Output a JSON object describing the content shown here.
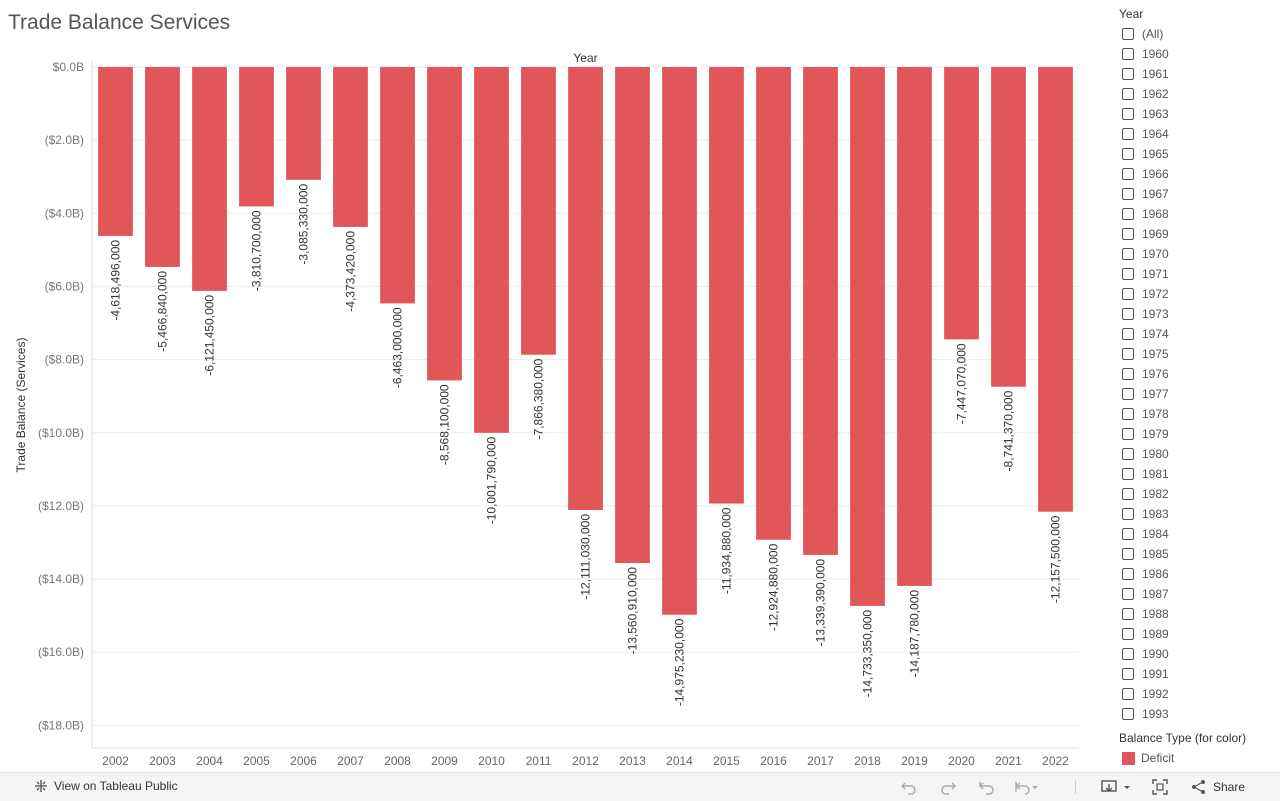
{
  "title": "Trade Balance Services",
  "colors": {
    "deficit": "#E15759",
    "grid": "#ececec",
    "axis_text": "#777777"
  },
  "chart_data": {
    "type": "bar",
    "title": "Trade Balance Services",
    "top_label": "Year",
    "xlabel": "Year",
    "ylabel": "Trade Balance (Services)",
    "ylim": [
      -18400000000,
      0
    ],
    "yticks": [
      0,
      -2000000000,
      -4000000000,
      -6000000000,
      -8000000000,
      -10000000000,
      -12000000000,
      -14000000000,
      -16000000000,
      -18000000000
    ],
    "ytick_labels": [
      "$0.0B",
      "($2.0B)",
      "($4.0B)",
      "($6.0B)",
      "($8.0B)",
      "($10.0B)",
      "($12.0B)",
      "($14.0B)",
      "($16.0B)",
      "($18.0B)"
    ],
    "categories": [
      "2002",
      "2003",
      "2004",
      "2005",
      "2006",
      "2007",
      "2008",
      "2009",
      "2010",
      "2011",
      "2012",
      "2013",
      "2014",
      "2015",
      "2016",
      "2017",
      "2018",
      "2019",
      "2020",
      "2021",
      "2022"
    ],
    "values": [
      -4618496000,
      -5466840000,
      -6121450000,
      -3810700000,
      -3085330000,
      -4373420000,
      -6463000000,
      -8568100000,
      -10001790000,
      -7866380000,
      -12111030000,
      -13560910000,
      -14975230000,
      -11934880000,
      -12924880000,
      -13339390000,
      -14733350000,
      -14187780000,
      -7447070000,
      -8741370000,
      -12157500000
    ],
    "data_labels": [
      "-4,618,496,000",
      "-5,466,840,000",
      "-6,121,450,000",
      "-3,810,700,000",
      "-3,085,330,000",
      "-4,373,420,000",
      "-6,463,000,000",
      "-8,568,100,000",
      "-10,001,790,000",
      "-7,866,380,000",
      "-12,111,030,000",
      "-13,560,910,000",
      "-14,975,230,000",
      "-11,934,880,000",
      "-12,924,880,000",
      "-13,339,390,000",
      "-14,733,350,000",
      "-14,187,780,000",
      "-7,447,070,000",
      "-8,741,370,000",
      "-12,157,500,000"
    ],
    "legend": {
      "title": "Balance Type (for color)",
      "entries": [
        "Deficit"
      ],
      "placement": "bottom-right"
    }
  },
  "filter": {
    "title": "Year",
    "items": [
      "(All)",
      "1960",
      "1961",
      "1962",
      "1963",
      "1964",
      "1965",
      "1966",
      "1967",
      "1968",
      "1969",
      "1970",
      "1971",
      "1972",
      "1973",
      "1974",
      "1975",
      "1976",
      "1977",
      "1978",
      "1979",
      "1980",
      "1981",
      "1982",
      "1983",
      "1984",
      "1985",
      "1986",
      "1987",
      "1988",
      "1989",
      "1990",
      "1991",
      "1992",
      "1993"
    ]
  },
  "legend": {
    "title": "Balance Type (for color)",
    "item": "Deficit"
  },
  "toolbar": {
    "view_label": "View on Tableau Public",
    "share_label": "Share",
    "icons": [
      "tableau-icon",
      "undo-icon",
      "redo-icon",
      "revert-icon",
      "pause-icon",
      "download-icon",
      "fullscreen-icon",
      "share-icon"
    ]
  }
}
